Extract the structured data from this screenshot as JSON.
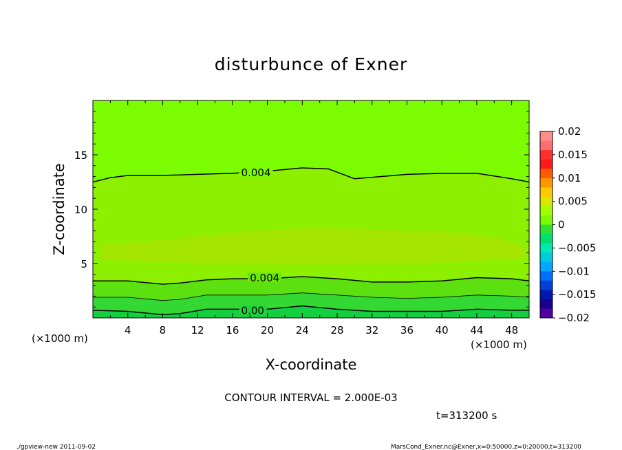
{
  "chart_data": {
    "type": "contour",
    "title": "disturbunce of Exner",
    "xlabel": "X-coordinate",
    "ylabel": "Z-coordinate",
    "x_unit": "(×1000 m)",
    "y_unit": "(×1000 m)",
    "x_ticks": [
      4,
      8,
      12,
      16,
      20,
      24,
      28,
      32,
      36,
      40,
      44,
      48
    ],
    "y_ticks": [
      5,
      10,
      15
    ],
    "xlim": [
      0,
      50
    ],
    "ylim": [
      0,
      20
    ],
    "contour_interval": "CONTOUR INTERVAL = 2.000E-03",
    "time_label": "t=313200 s",
    "contour_labels": [
      {
        "text": "0.004",
        "x": 17,
        "z": 13.3
      },
      {
        "text": "0.004",
        "x": 18,
        "z": 3.6
      },
      {
        "text": "0.00",
        "x": 17,
        "z": 0.6
      }
    ],
    "contours": [
      {
        "level": 0.004,
        "points": [
          [
            0,
            12.5
          ],
          [
            2,
            12.9
          ],
          [
            4,
            13.1
          ],
          [
            8,
            13.1
          ],
          [
            12,
            13.2
          ],
          [
            16,
            13.3
          ],
          [
            20,
            13.5
          ],
          [
            24,
            13.8
          ],
          [
            27,
            13.7
          ],
          [
            30,
            12.8
          ],
          [
            33,
            13.0
          ],
          [
            36,
            13.2
          ],
          [
            40,
            13.3
          ],
          [
            44,
            13.3
          ],
          [
            48,
            12.8
          ],
          [
            50,
            12.5
          ]
        ]
      },
      {
        "level": 0.004,
        "points": [
          [
            0,
            3.4
          ],
          [
            4,
            3.4
          ],
          [
            8,
            3.1
          ],
          [
            10,
            3.2
          ],
          [
            13,
            3.5
          ],
          [
            16,
            3.6
          ],
          [
            20,
            3.6
          ],
          [
            24,
            3.8
          ],
          [
            28,
            3.6
          ],
          [
            32,
            3.3
          ],
          [
            36,
            3.3
          ],
          [
            40,
            3.4
          ],
          [
            44,
            3.7
          ],
          [
            48,
            3.6
          ],
          [
            50,
            3.4
          ]
        ]
      },
      {
        "level": 0.002,
        "points": [
          [
            0,
            1.9
          ],
          [
            4,
            1.9
          ],
          [
            8,
            1.6
          ],
          [
            10,
            1.7
          ],
          [
            13,
            2.1
          ],
          [
            16,
            2.1
          ],
          [
            20,
            2.1
          ],
          [
            24,
            2.3
          ],
          [
            28,
            2.1
          ],
          [
            32,
            1.9
          ],
          [
            36,
            1.8
          ],
          [
            40,
            1.9
          ],
          [
            44,
            2.1
          ],
          [
            48,
            2.0
          ],
          [
            50,
            1.9
          ]
        ]
      },
      {
        "level": 0.0,
        "points": [
          [
            0,
            0.7
          ],
          [
            4,
            0.6
          ],
          [
            8,
            0.3
          ],
          [
            10,
            0.4
          ],
          [
            13,
            0.8
          ],
          [
            16,
            0.8
          ],
          [
            20,
            0.8
          ],
          [
            24,
            1.1
          ],
          [
            28,
            0.8
          ],
          [
            32,
            0.6
          ],
          [
            36,
            0.6
          ],
          [
            40,
            0.6
          ],
          [
            44,
            0.8
          ],
          [
            48,
            0.7
          ],
          [
            50,
            0.7
          ]
        ]
      }
    ],
    "colorbar": {
      "labels": [
        "0.02",
        "0.015",
        "0.01",
        "0.005",
        "0",
        "−0.005",
        "−0.01",
        "−0.015",
        "−0.02"
      ],
      "colors": [
        "#ff8c8c",
        "#ff7070",
        "#ff3030",
        "#ff1a1a",
        "#ff5a00",
        "#ff9600",
        "#ffc800",
        "#dce600",
        "#a0ff00",
        "#7cfc00",
        "#30e030",
        "#00e070",
        "#00e8b4",
        "#00ccdd",
        "#00a8ff",
        "#0070ff",
        "#0040d8",
        "#0018b0",
        "#180090",
        "#5000a0"
      ]
    }
  },
  "footer": {
    "left": "./gpview-new   2011-09-02",
    "right": "MarsCond_Exner.nc@Exner,x=0:50000,z=0:20000,t=313200"
  }
}
